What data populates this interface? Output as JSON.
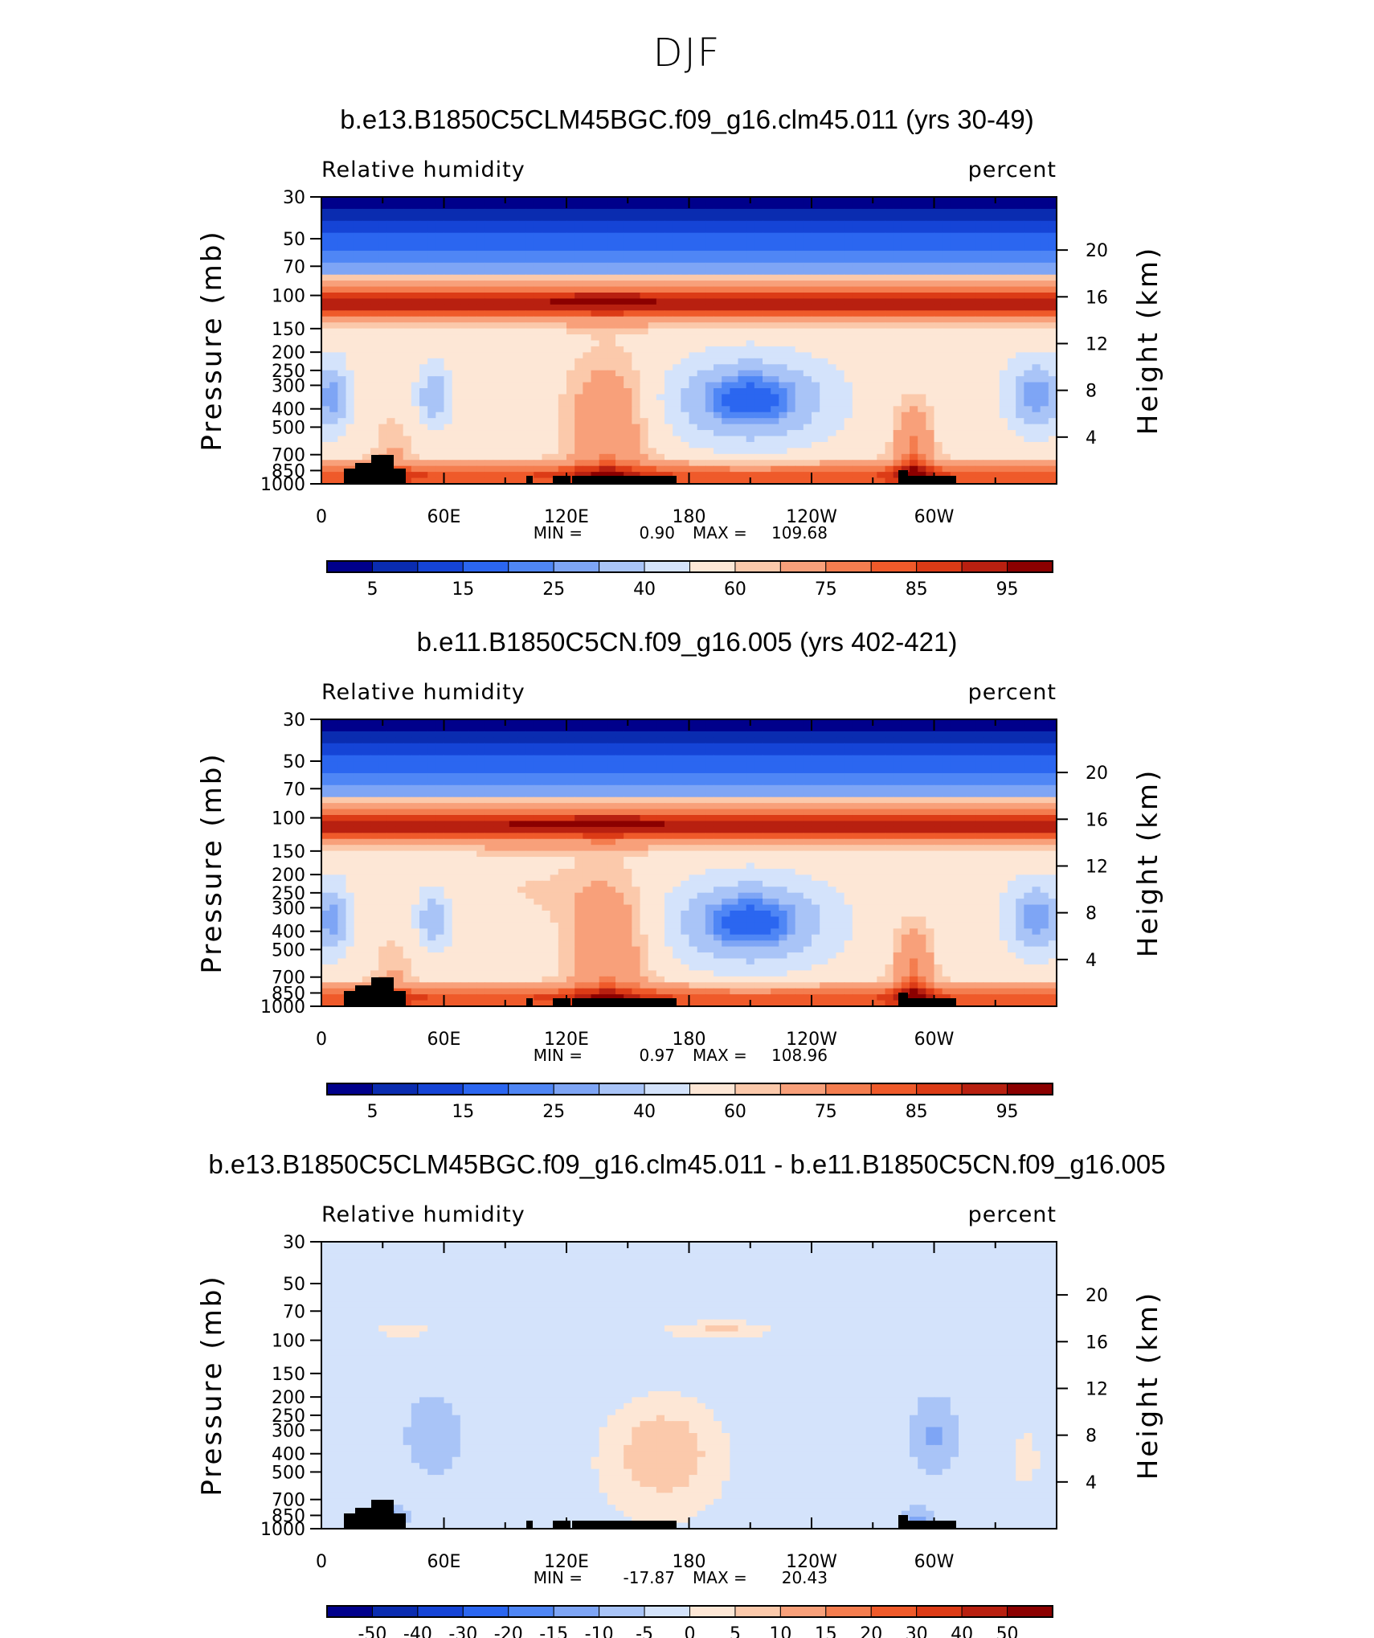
{
  "figure": {
    "title": "DJF"
  },
  "colors": {
    "blue_scale": [
      "#00008b",
      "#0a2cb0",
      "#1544d6",
      "#2b66f0",
      "#4f86f5",
      "#7ea5f5",
      "#a9c4f7",
      "#d4e3fb"
    ],
    "red_scale": [
      "#fde7d6",
      "#fbc9ab",
      "#f8a07a",
      "#f47d4f",
      "#ef5a2a",
      "#dc3b16",
      "#b82010",
      "#8b0000"
    ],
    "topography": "#000000"
  },
  "chart_data": [
    {
      "type": "heatmap",
      "title": "b.e13.B1850C5CLM45BGC.f09_g16.clm45.011 (yrs 30-49)",
      "left_label": "Relative humidity",
      "right_label": "percent",
      "ylabel": "Pressure (mb)",
      "ylabel_right": "Height (km)",
      "x_tick_labels": [
        "0",
        "60E",
        "120E",
        "180",
        "120W",
        "60W"
      ],
      "y_tick_labels": [
        "30",
        "50",
        "70",
        "100",
        "150",
        "200",
        "250",
        "300",
        "400",
        "500",
        "700",
        "850",
        "1000"
      ],
      "right_tick_labels": [
        "20",
        "16",
        "12",
        "8",
        "4"
      ],
      "stats": {
        "min_label": "MIN =",
        "min": "0.90",
        "max_label": "MAX =",
        "max": "109.68"
      },
      "colorbar_labels": [
        "5",
        "15",
        "25",
        "40",
        "60",
        "75",
        "85",
        "95"
      ],
      "colorbar_levels": [
        5,
        10,
        15,
        20,
        25,
        30,
        40,
        50,
        60,
        65,
        75,
        80,
        85,
        90,
        95
      ]
    },
    {
      "type": "heatmap",
      "title": "b.e11.B1850C5CN.f09_g16.005 (yrs 402-421)",
      "left_label": "Relative humidity",
      "right_label": "percent",
      "ylabel": "Pressure (mb)",
      "ylabel_right": "Height (km)",
      "x_tick_labels": [
        "0",
        "60E",
        "120E",
        "180",
        "120W",
        "60W"
      ],
      "y_tick_labels": [
        "30",
        "50",
        "70",
        "100",
        "150",
        "200",
        "250",
        "300",
        "400",
        "500",
        "700",
        "850",
        "1000"
      ],
      "right_tick_labels": [
        "20",
        "16",
        "12",
        "8",
        "4"
      ],
      "stats": {
        "min_label": "MIN =",
        "min": "0.97",
        "max_label": "MAX =",
        "max": "108.96"
      },
      "colorbar_labels": [
        "5",
        "15",
        "25",
        "40",
        "60",
        "75",
        "85",
        "95"
      ],
      "colorbar_levels": [
        5,
        10,
        15,
        20,
        25,
        30,
        40,
        50,
        60,
        65,
        75,
        80,
        85,
        90,
        95
      ]
    },
    {
      "type": "heatmap",
      "title": "b.e13.B1850C5CLM45BGC.f09_g16.clm45.011 - b.e11.B1850C5CN.f09_g16.005",
      "left_label": "Relative humidity",
      "right_label": "percent",
      "ylabel": "Pressure (mb)",
      "ylabel_right": "Height (km)",
      "x_tick_labels": [
        "0",
        "60E",
        "120E",
        "180",
        "120W",
        "60W"
      ],
      "y_tick_labels": [
        "30",
        "50",
        "70",
        "100",
        "150",
        "200",
        "250",
        "300",
        "400",
        "500",
        "700",
        "850",
        "1000"
      ],
      "right_tick_labels": [
        "20",
        "16",
        "12",
        "8",
        "4"
      ],
      "stats": {
        "min_label": "MIN =",
        "min": "-17.87",
        "max_label": "MAX =",
        "max": "20.43"
      },
      "colorbar_labels": [
        "-50",
        "-40",
        "-30",
        "-20",
        "-15",
        "-10",
        "-5",
        "0",
        "5",
        "10",
        "15",
        "20",
        "30",
        "40",
        "50"
      ],
      "colorbar_levels": [
        -50,
        -40,
        -30,
        -20,
        -15,
        -10,
        -5,
        0,
        5,
        10,
        15,
        20,
        30,
        40,
        50
      ]
    }
  ]
}
